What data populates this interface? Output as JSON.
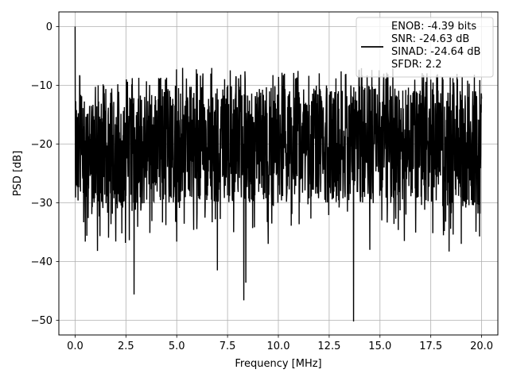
{
  "chart_data": {
    "type": "line",
    "xlabel": "Frequency [MHz]",
    "ylabel": "PSD [dB]",
    "xlim": [
      -0.8,
      20.8
    ],
    "ylim": [
      -52.5,
      2.5
    ],
    "xticks": [
      0.0,
      2.5,
      5.0,
      7.5,
      10.0,
      12.5,
      15.0,
      17.5,
      20.0
    ],
    "xtick_labels": [
      "0.0",
      "2.5",
      "5.0",
      "7.5",
      "10.0",
      "12.5",
      "15.0",
      "17.5",
      "20.0"
    ],
    "yticks": [
      0,
      -10,
      -20,
      -30,
      -40,
      -50
    ],
    "ytick_labels": [
      "0",
      "−10",
      "−20",
      "−30",
      "−40",
      "−50"
    ],
    "grid": true,
    "legend_position": "top-right",
    "series": [
      {
        "name": "ENOB: -4.39 bits\nSNR: -24.63 dB\nSINAD: -24.64 dB\nSFDR: 2.2",
        "color": "#000000",
        "x_range": [
          0,
          20
        ],
        "description_values": {
          "peak": [
            0.0,
            0.0
          ],
          "noise_floor_median": -20,
          "upper_envelope": [
            [
              0.0,
              -6
            ],
            [
              0.5,
              -10
            ],
            [
              2.5,
              -9
            ],
            [
              5.0,
              -7
            ],
            [
              10.0,
              -7
            ],
            [
              15.0,
              -7
            ],
            [
              20.0,
              -8
            ]
          ],
          "lower_envelope_typical": -28
        },
        "notable_dips": [
          [
            0.5,
            -36.6
          ],
          [
            1.1,
            -38.2
          ],
          [
            2.3,
            -35.2
          ],
          [
            2.9,
            -45.6
          ],
          [
            5.0,
            -36.6
          ],
          [
            7.0,
            -41.5
          ],
          [
            7.8,
            -35.0
          ],
          [
            8.3,
            -46.6
          ],
          [
            8.4,
            -43.6
          ],
          [
            9.5,
            -37.0
          ],
          [
            13.7,
            -50.2
          ],
          [
            14.5,
            -38.0
          ],
          [
            16.2,
            -36.5
          ],
          [
            18.4,
            -38.3
          ],
          [
            19.0,
            -37.0
          ]
        ]
      }
    ],
    "legend_lines": [
      "ENOB: -4.39 bits",
      "SNR: -24.63 dB",
      "SINAD: -24.64 dB",
      "SFDR: 2.2"
    ]
  }
}
